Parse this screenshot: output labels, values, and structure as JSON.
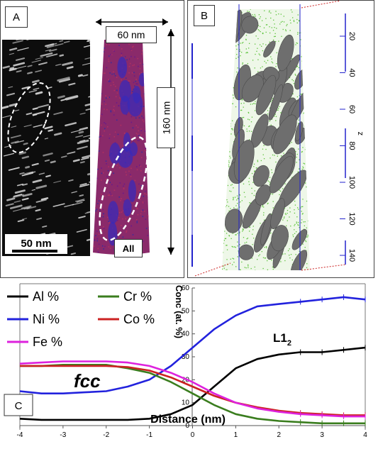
{
  "panel_a": {
    "label": "A",
    "scale_bar_text": "50 nm",
    "width_annotation": "60 nm",
    "height_annotation": "160 nm",
    "element_tag": "All"
  },
  "panel_b": {
    "label": "B",
    "z_axis_label": "z",
    "z_ticks": [
      "20",
      "40",
      "60",
      "80",
      "100",
      "120",
      "140"
    ]
  },
  "panel_c": {
    "label": "C",
    "phase_left": "fcc",
    "phase_right_base": "L1",
    "phase_right_sub": "2",
    "colors": {
      "Al": "#000000",
      "Cr": "#3a7d1e",
      "Ni": "#2222dd",
      "Co": "#cc2222",
      "Fe": "#dd22dd"
    }
  },
  "chart_data": {
    "type": "line",
    "xlabel": "Distance (nm)",
    "ylabel": "Conc (at. %)",
    "xlim": [
      -4,
      4
    ],
    "ylim": [
      0,
      60
    ],
    "x_ticks": [
      "-4",
      "-3",
      "-2",
      "-1",
      "0",
      "1",
      "2",
      "3",
      "4"
    ],
    "y_ticks": [
      "0",
      "10",
      "20",
      "30",
      "40",
      "50",
      "60"
    ],
    "x": [
      -4,
      -3.5,
      -3,
      -2.5,
      -2,
      -1.5,
      -1,
      -0.5,
      0,
      0.5,
      1,
      1.5,
      2,
      2.5,
      3,
      3.5,
      4
    ],
    "series": [
      {
        "name": "Al %",
        "values": [
          3,
          2.5,
          2.5,
          2.5,
          2.5,
          2.5,
          3,
          5,
          9,
          17,
          25,
          29,
          31,
          32,
          32,
          33,
          34
        ]
      },
      {
        "name": "Ni %",
        "values": [
          15,
          14,
          14,
          14.5,
          15,
          17,
          20,
          26,
          34,
          42,
          48,
          52,
          53,
          54,
          55,
          56,
          55
        ]
      },
      {
        "name": "Cr %",
        "values": [
          26,
          26,
          26.5,
          26.5,
          26.5,
          25,
          23,
          19,
          14,
          9,
          5,
          3,
          2,
          1.5,
          1,
          1,
          1
        ]
      },
      {
        "name": "Co %",
        "values": [
          26,
          26,
          26,
          26,
          26,
          25.5,
          24,
          21,
          17,
          13,
          10,
          8,
          6.5,
          5.5,
          5,
          4.5,
          4.5
        ]
      },
      {
        "name": "Fe %",
        "values": [
          27,
          27.5,
          28,
          28,
          28,
          27.5,
          26,
          23,
          19,
          14,
          10,
          7.5,
          6,
          5,
          4.5,
          4,
          4
        ]
      }
    ],
    "legend": [
      "Al %",
      "Cr %",
      "Ni %",
      "Co %",
      "Fe %"
    ]
  }
}
